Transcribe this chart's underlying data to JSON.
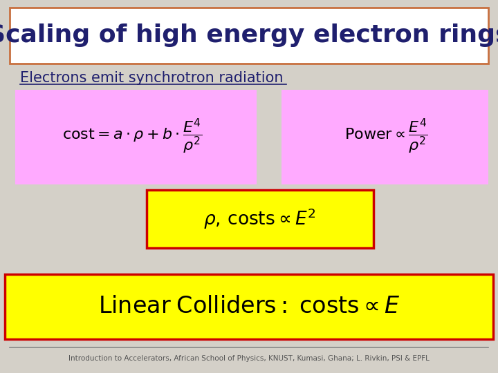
{
  "bg_color": "#d4d0c8",
  "title": "Scaling of high energy electron rings",
  "title_color": "#1f1f6e",
  "title_box_edge": "#c87040",
  "subtitle": "Electrons emit synchrotron radiation",
  "subtitle_color": "#1f1f6e",
  "formula1": "$\\mathrm{cost} = a \\cdot \\rho + b \\cdot \\dfrac{E^4}{\\rho^2}$",
  "formula2": "$\\mathrm{Power} \\propto \\dfrac{E^4}{\\rho^2}$",
  "formula3": "$\\rho,\\, \\mathrm{costs} \\propto E^2$",
  "formula4": "$\\mathrm{Linear\\; Colliders:\\; costs} \\propto E$",
  "pink_bg": "#ffaaff",
  "yellow_bg": "#ffff00",
  "red_border": "#cc0000",
  "footer": "Introduction to Accelerators, African School of Physics, KNUST, Kumasi, Ghana; L. Rivkin, PSI & EPFL",
  "footer_color": "#555555"
}
